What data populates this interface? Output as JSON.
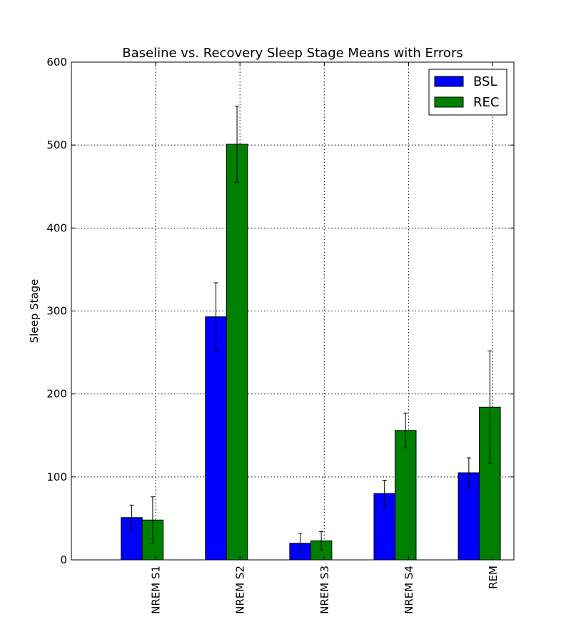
{
  "chart_data": {
    "type": "bar",
    "title": "Baseline vs. Recovery Sleep Stage Means with Errors",
    "xlabel": "",
    "ylabel": "Sleep Stage",
    "categories": [
      "NREM S1",
      "NREM S2",
      "NREM S3",
      "NREM S4",
      "REM"
    ],
    "series": [
      {
        "name": "BSL",
        "color": "#0000ff",
        "values": [
          51,
          293,
          20,
          80,
          105
        ],
        "errors": [
          15,
          41,
          12,
          16,
          18
        ]
      },
      {
        "name": "REC",
        "color": "#008000",
        "values": [
          48,
          501,
          23,
          156,
          184
        ],
        "errors": [
          28,
          46,
          11,
          21,
          68
        ]
      }
    ],
    "ylim": [
      0,
      600
    ],
    "yticks": [
      0,
      100,
      200,
      300,
      400,
      500,
      600
    ],
    "grid": true,
    "legend_position": "top-right"
  }
}
